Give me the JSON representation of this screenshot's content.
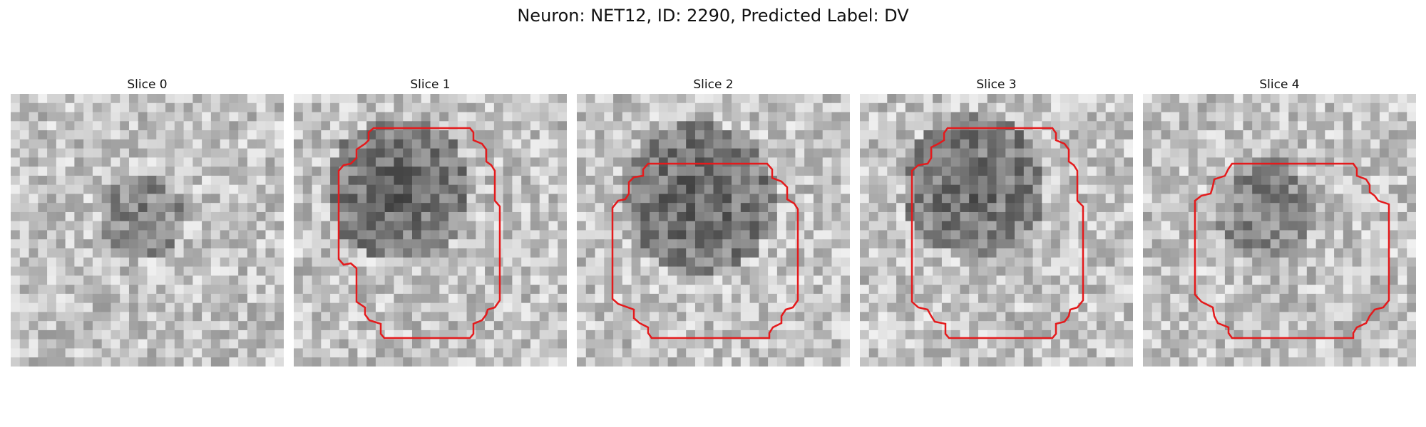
{
  "figure": {
    "suptitle": "Neuron: NET12, ID: 2290, Predicted Label: DV"
  },
  "panels": [
    {
      "title": "Slice 0",
      "has_roi_outline": false
    },
    {
      "title": "Slice 1",
      "has_roi_outline": true
    },
    {
      "title": "Slice 2",
      "has_roi_outline": true
    },
    {
      "title": "Slice 3",
      "has_roi_outline": true
    },
    {
      "title": "Slice 4",
      "has_roi_outline": true
    }
  ],
  "colors": {
    "roi_outline": "#e41a1c"
  }
}
